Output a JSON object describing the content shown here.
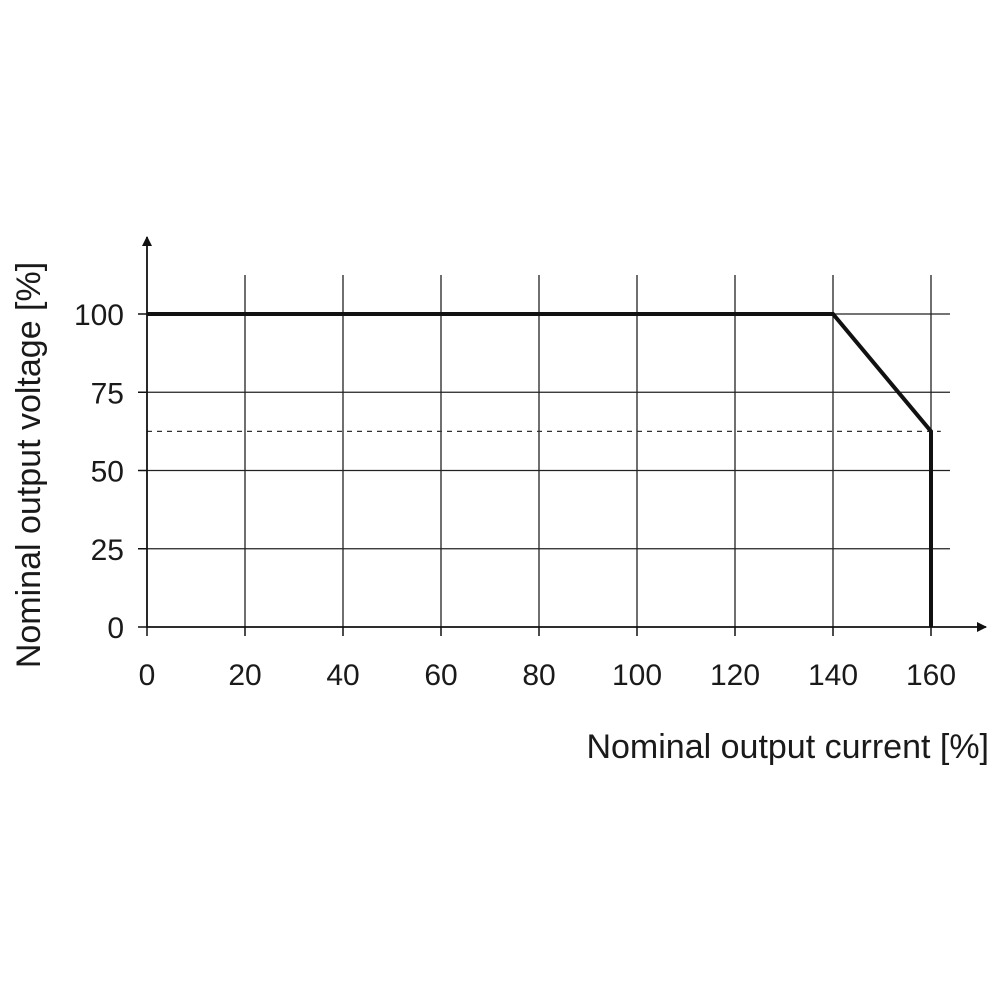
{
  "chart_data": {
    "type": "line",
    "title": "",
    "xlabel": "Nominal output current [%]",
    "ylabel": "Nominal output voltage [%]",
    "xlim": [
      0,
      160
    ],
    "ylim": [
      0,
      100
    ],
    "x_ticks": [
      0,
      20,
      40,
      60,
      80,
      100,
      120,
      140,
      160
    ],
    "y_ticks": [
      0,
      25,
      50,
      75,
      100
    ],
    "grid": true,
    "series": [
      {
        "x": [
          0,
          140,
          160,
          160
        ],
        "y": [
          100,
          100,
          62.5,
          0
        ],
        "color": "#111111"
      }
    ],
    "reference_lines": [
      {
        "orientation": "horizontal",
        "y": 62.5,
        "style": "dashed",
        "x_range": [
          0,
          162
        ]
      }
    ]
  }
}
